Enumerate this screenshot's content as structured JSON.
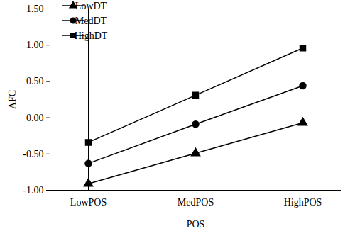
{
  "chart_data": {
    "type": "line",
    "x_label": "POS",
    "y_label": "AFC",
    "categories": [
      "LowPOS",
      "MedPOS",
      "HighPOS"
    ],
    "series": [
      {
        "name": "LowDT",
        "color": "#000000",
        "marker": "triangle",
        "values": [
          -0.91,
          -0.49,
          -0.07
        ]
      },
      {
        "name": "MedDT",
        "color": "#000000",
        "marker": "circle",
        "values": [
          -0.63,
          -0.09,
          0.44
        ]
      },
      {
        "name": "HighDT",
        "color": "#000000",
        "marker": "square",
        "values": [
          -0.34,
          0.31,
          0.96
        ]
      }
    ],
    "ylim": [
      -1.0,
      1.5
    ],
    "yticks": [
      {
        "value": -1.0,
        "label": "-1.00"
      },
      {
        "value": -0.5,
        "label": "-0.50"
      },
      {
        "value": 0.0,
        "label": "0.00"
      },
      {
        "value": 0.5,
        "label": "0.50"
      },
      {
        "value": 1.0,
        "label": "1.00"
      },
      {
        "value": 1.5,
        "label": "1.50"
      }
    ],
    "grid": false,
    "legend": "top-left"
  }
}
